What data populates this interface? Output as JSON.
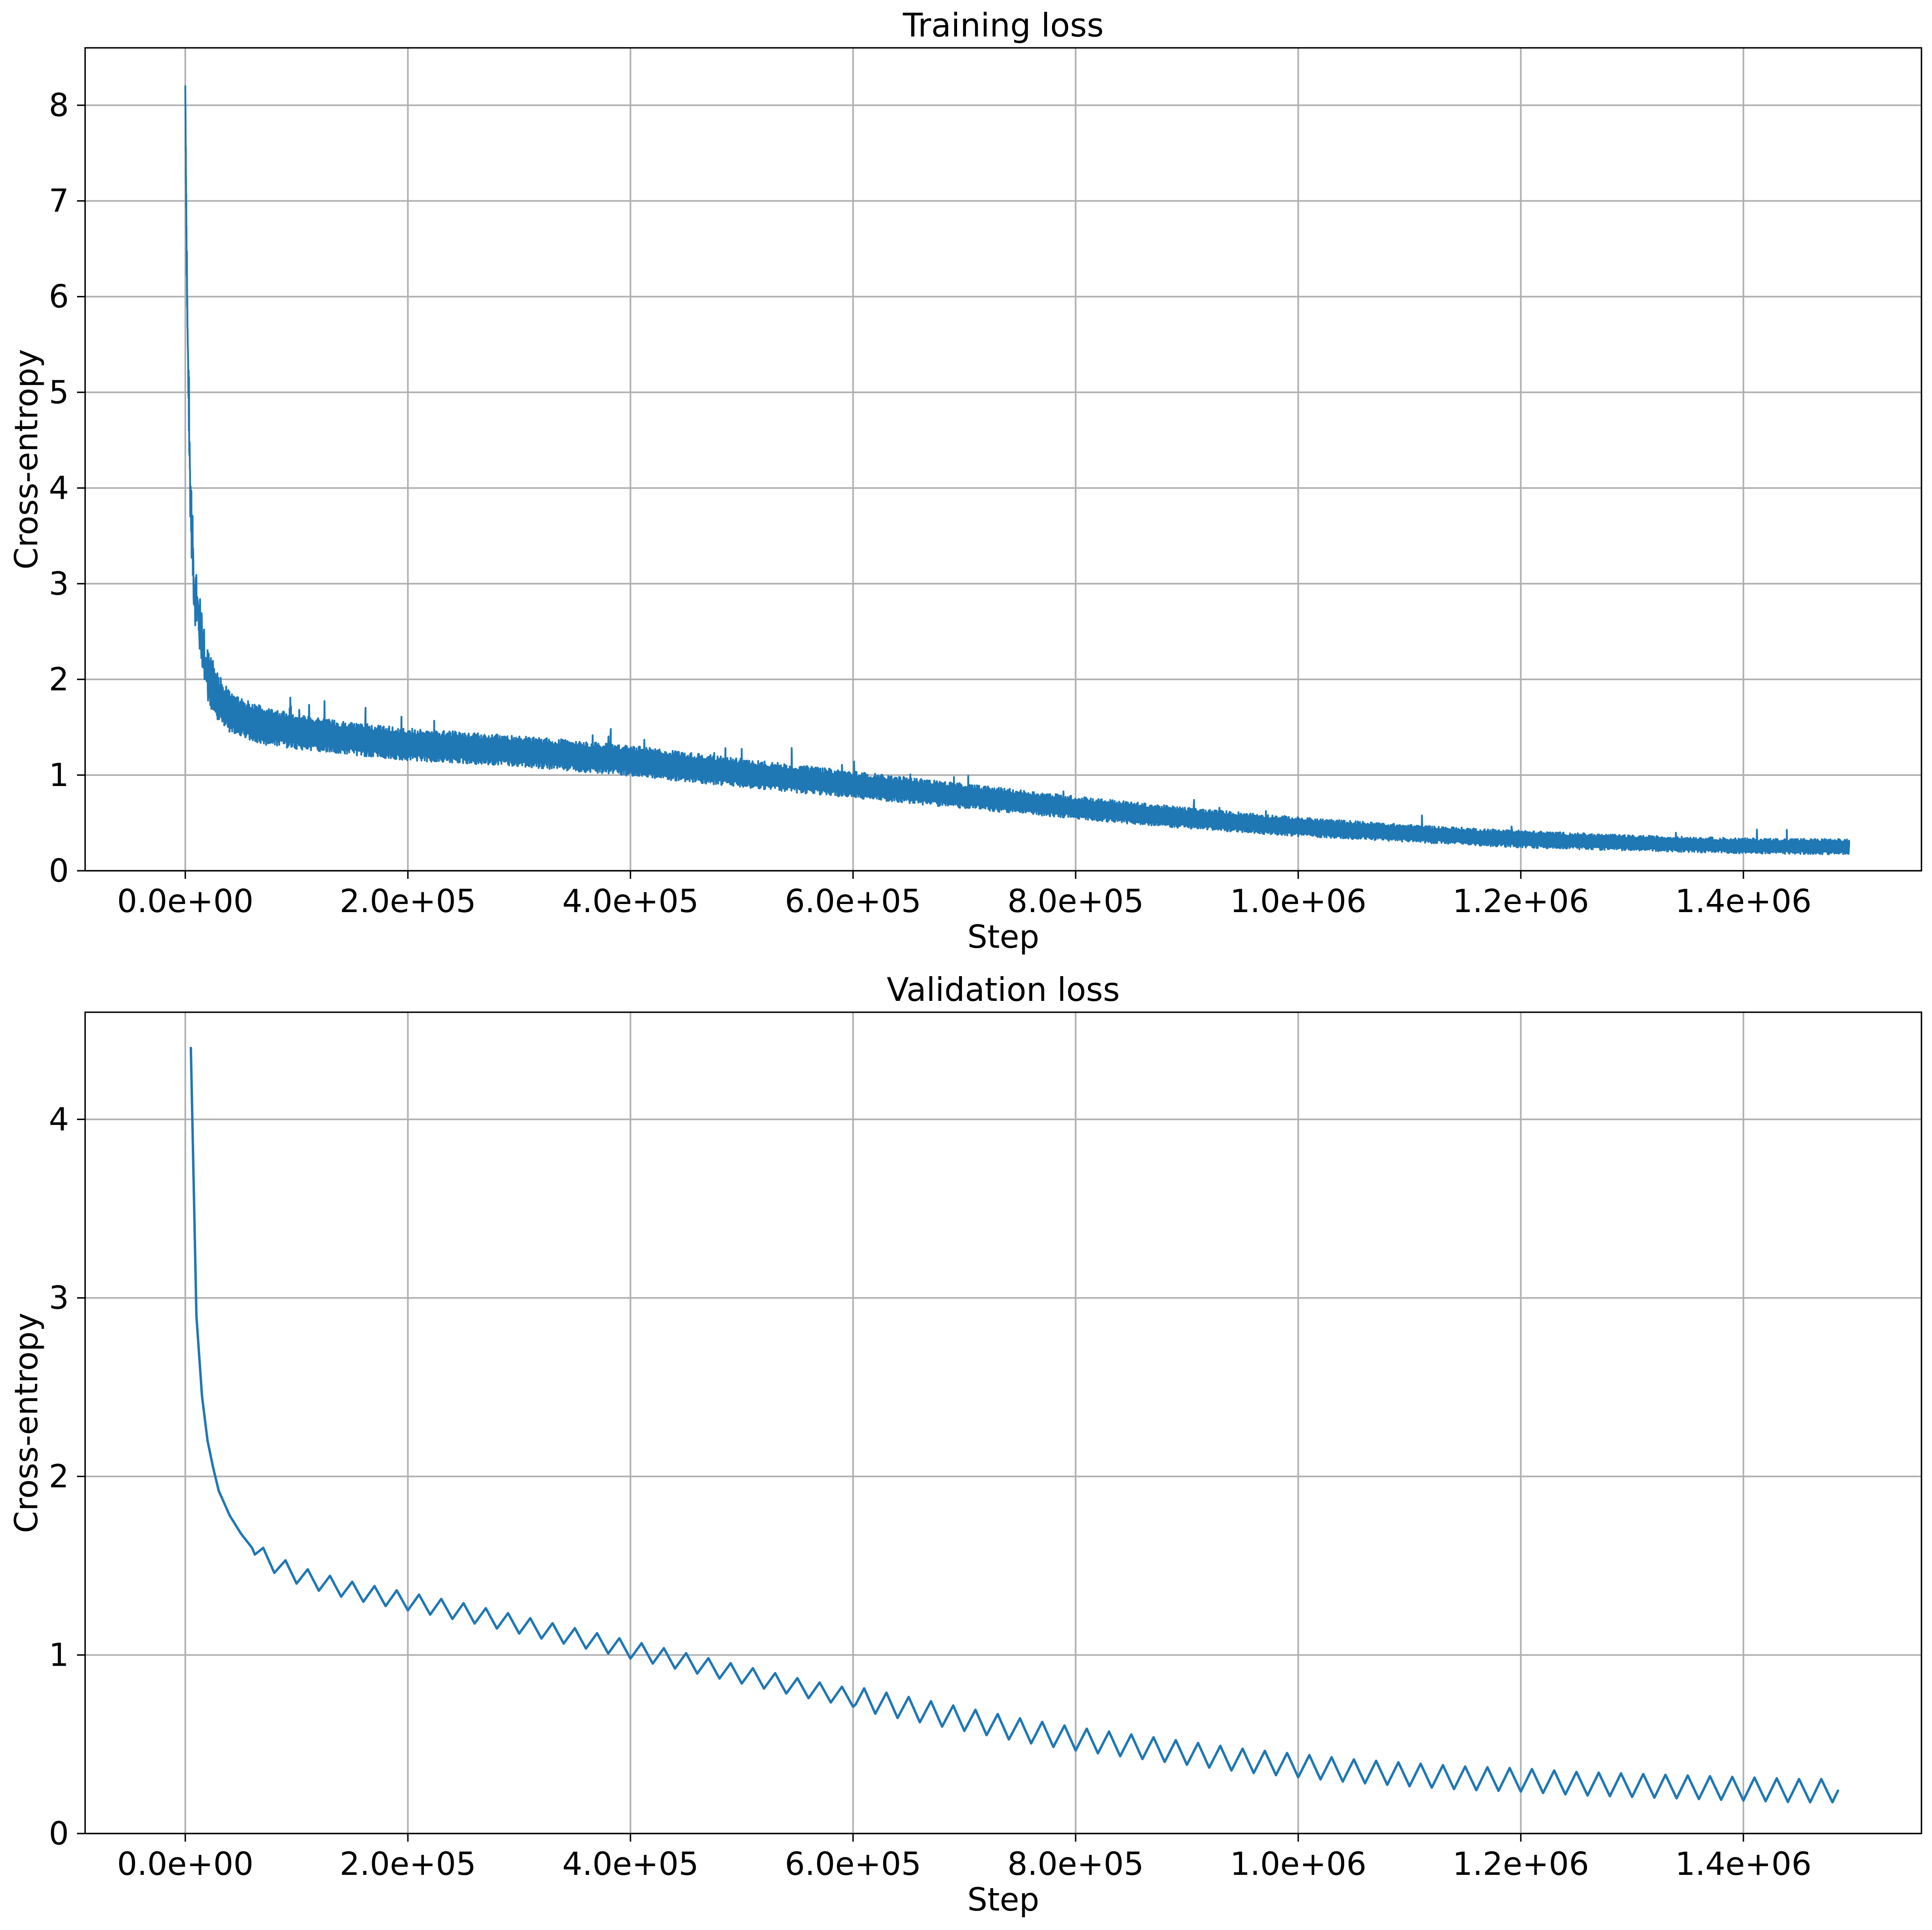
{
  "colors": {
    "series": "#1f77b4",
    "grid": "#b0b0b0",
    "axes": "#000000",
    "background": "#ffffff"
  },
  "chart_data": [
    {
      "type": "line",
      "title": "Training loss",
      "xlabel": "Step",
      "ylabel": "Cross-entropy",
      "xlim": [
        -90000,
        1560000
      ],
      "ylim": [
        0,
        8.6
      ],
      "xticks": [
        0,
        200000,
        400000,
        600000,
        800000,
        1000000,
        1200000,
        1400000
      ],
      "xtick_labels": [
        "0.0e+00",
        "2.0e+05",
        "4.0e+05",
        "6.0e+05",
        "8.0e+05",
        "1.0e+06",
        "1.2e+06",
        "1.4e+06"
      ],
      "yticks": [
        0,
        1,
        2,
        3,
        4,
        5,
        6,
        7,
        8
      ],
      "ytick_labels": [
        "0",
        "1",
        "2",
        "3",
        "4",
        "5",
        "6",
        "7",
        "8"
      ],
      "grid": true,
      "legend": false,
      "series": [
        {
          "x": [
            0,
            1000,
            2000,
            4000,
            6000,
            8000,
            10000,
            15000,
            20000,
            30000,
            40000,
            50000,
            70000,
            100000,
            150000,
            200000,
            300000,
            400000,
            500000,
            600000,
            700000,
            800000,
            900000,
            1000000,
            1100000,
            1200000,
            1300000,
            1400000,
            1495000
          ],
          "y": [
            8.2,
            6.6,
            5.6,
            4.2,
            3.5,
            3.0,
            2.8,
            2.4,
            2.05,
            1.8,
            1.65,
            1.6,
            1.52,
            1.45,
            1.38,
            1.32,
            1.25,
            1.15,
            1.02,
            0.9,
            0.78,
            0.66,
            0.55,
            0.46,
            0.39,
            0.33,
            0.29,
            0.26,
            0.25
          ],
          "band_half_width": [
            0.0,
            0.3,
            0.3,
            0.35,
            0.35,
            0.35,
            0.35,
            0.3,
            0.3,
            0.25,
            0.22,
            0.2,
            0.2,
            0.18,
            0.17,
            0.17,
            0.16,
            0.16,
            0.15,
            0.14,
            0.13,
            0.12,
            0.11,
            0.1,
            0.09,
            0.09,
            0.08,
            0.08,
            0.08
          ]
        }
      ]
    },
    {
      "type": "line",
      "title": "Validation loss",
      "xlabel": "Step",
      "ylabel": "Cross-entropy",
      "xlim": [
        -90000,
        1560000
      ],
      "ylim": [
        0,
        4.6
      ],
      "xticks": [
        0,
        200000,
        400000,
        600000,
        800000,
        1000000,
        1200000,
        1400000
      ],
      "xtick_labels": [
        "0.0e+00",
        "2.0e+05",
        "4.0e+05",
        "6.0e+05",
        "8.0e+05",
        "1.0e+06",
        "1.2e+06",
        "1.4e+06"
      ],
      "yticks": [
        0,
        1,
        2,
        3,
        4
      ],
      "ytick_labels": [
        "0",
        "1",
        "2",
        "3",
        "4"
      ],
      "grid": true,
      "legend": false,
      "series": [
        {
          "x": [
            5000,
            10000,
            15000,
            20000,
            25000,
            30000,
            40000,
            50000,
            60000,
            70000,
            80000,
            90000,
            100000,
            120000,
            150000,
            200000,
            250000,
            300000,
            350000,
            400000,
            450000,
            500000,
            550000,
            600000,
            650000,
            700000,
            750000,
            800000,
            850000,
            900000,
            950000,
            1000000,
            1050000,
            1100000,
            1150000,
            1200000,
            1250000,
            1300000,
            1350000,
            1400000,
            1450000,
            1485000
          ],
          "y": [
            4.4,
            2.9,
            2.45,
            2.2,
            2.05,
            1.92,
            1.78,
            1.68,
            1.6,
            1.55,
            1.51,
            1.48,
            1.45,
            1.41,
            1.36,
            1.3,
            1.24,
            1.17,
            1.1,
            1.03,
            0.96,
            0.89,
            0.82,
            0.76,
            0.7,
            0.64,
            0.58,
            0.53,
            0.49,
            0.45,
            0.41,
            0.38,
            0.35,
            0.33,
            0.31,
            0.3,
            0.28,
            0.27,
            0.26,
            0.25,
            0.24,
            0.24
          ],
          "oscillation": {
            "period": 20000,
            "amplitude": 0.05
          }
        }
      ]
    }
  ]
}
